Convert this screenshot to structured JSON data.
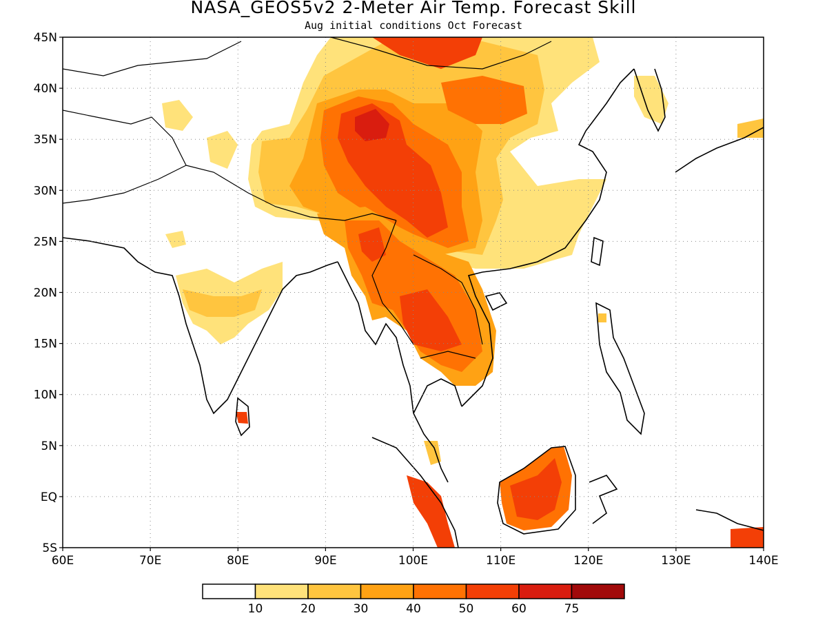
{
  "title": "NASA_GEOS5v2 2-Meter Air Temp. Forecast Skill",
  "subtitle": "Aug initial conditions  Oct Forecast",
  "map": {
    "lon_range": [
      60,
      140
    ],
    "lat_range": [
      -5,
      45
    ],
    "lon_labels": [
      "60E",
      "70E",
      "80E",
      "90E",
      "100E",
      "110E",
      "120E",
      "130E",
      "140E"
    ],
    "lat_labels": [
      "5S",
      "EQ",
      "5N",
      "10N",
      "15N",
      "20N",
      "25N",
      "30N",
      "35N",
      "40N",
      "45N"
    ],
    "grid": "dotted"
  },
  "legend": {
    "labels": [
      "10",
      "20",
      "30",
      "40",
      "50",
      "60",
      "75"
    ],
    "colors": [
      "#ffffff",
      "#ffe27a",
      "#ffc53f",
      "#ffa214",
      "#ff7203",
      "#f33f06",
      "#d91d0f",
      "#a10a0a"
    ]
  }
}
